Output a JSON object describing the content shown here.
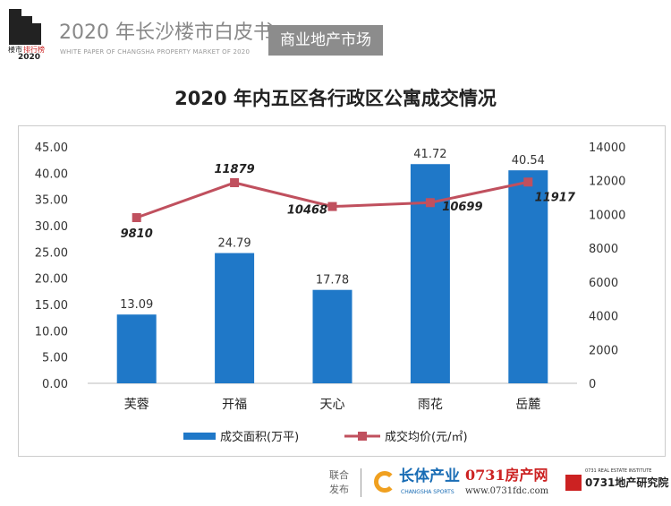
{
  "header": {
    "logo_text": "楼市排行榜",
    "logo_year": "2020",
    "title": "2020 年长沙楼市白皮书",
    "subtitle": "WHITE PAPER OF CHANGSHA PROPERTY MARKET OF 2020",
    "tag": "商业地产市场"
  },
  "chart_data": {
    "type": "bar+line",
    "title": "2020 年内五区各行政区公寓成交情况",
    "categories": [
      "芙蓉",
      "开福",
      "天心",
      "雨花",
      "岳麓"
    ],
    "series": [
      {
        "name": "成交面积(万平)",
        "type": "bar",
        "axis": "left",
        "color": "#1f78c8",
        "values": [
          13.09,
          24.79,
          17.78,
          41.72,
          40.54
        ]
      },
      {
        "name": "成交均价(元/㎡)",
        "type": "line",
        "axis": "right",
        "color": "#c0505e",
        "values": [
          9810,
          11879,
          10468,
          10699,
          11917
        ]
      }
    ],
    "y_left": {
      "range": [
        0,
        45
      ],
      "ticks": [
        "0.00",
        "5.00",
        "10.00",
        "15.00",
        "20.00",
        "25.00",
        "30.00",
        "35.00",
        "40.00",
        "45.00"
      ]
    },
    "y_right": {
      "range": [
        0,
        14000
      ],
      "ticks": [
        "0",
        "2000",
        "4000",
        "6000",
        "8000",
        "10000",
        "12000",
        "14000"
      ]
    },
    "legend": "bottom"
  },
  "footer": {
    "joint": "联合",
    "publish": "发布",
    "partner1": "长体产业",
    "partner1_en": "CHANGSHA SPORTS",
    "partner2": "0731房产网",
    "partner2_url": "www.0731fdc.com",
    "partner3": "0731地产研究院",
    "partner3_en": "0731 REAL ESTATE INSTITUTE"
  }
}
